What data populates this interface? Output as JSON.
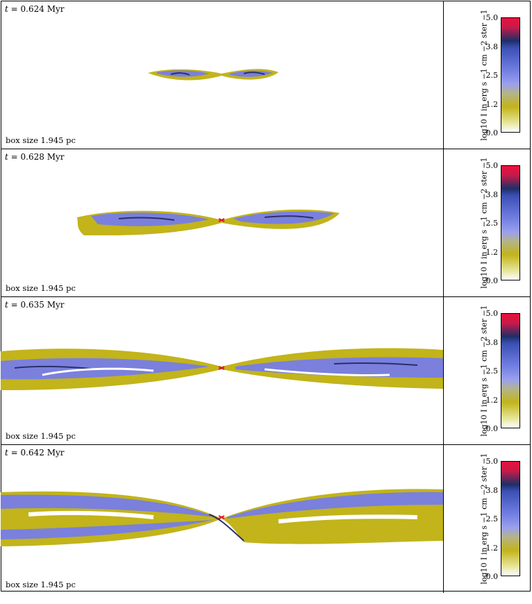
{
  "panels": [
    {
      "time_prefix": "t = ",
      "time_value": "0.624",
      "time_unit": "Myr",
      "box_size": "box size 1.945 pc"
    },
    {
      "time_prefix": "t = ",
      "time_value": "0.628",
      "time_unit": "Myr",
      "box_size": "box size 1.945 pc"
    },
    {
      "time_prefix": "t = ",
      "time_value": "0.635",
      "time_unit": "Myr",
      "box_size": "box size 1.945 pc"
    },
    {
      "time_prefix": "t = ",
      "time_value": "0.642",
      "time_unit": "Myr",
      "box_size": "box size 1.945 pc"
    }
  ],
  "colorbar": {
    "label": "log10 I in erg s −1 cm −2 ster −1",
    "ticks": [
      "5.0",
      "3.8",
      "2.5",
      "1.2",
      "0.0"
    ],
    "range": [
      0.0,
      5.0
    ],
    "colors": [
      "#e8123a",
      "#1e2f66",
      "#6f7ce0",
      "#c2b41a",
      "#ffffff"
    ]
  },
  "colors": {
    "yellow": "#c2b41a",
    "blue": "#7a80dc",
    "dark": "#2a2f6a",
    "red": "#e01030"
  }
}
